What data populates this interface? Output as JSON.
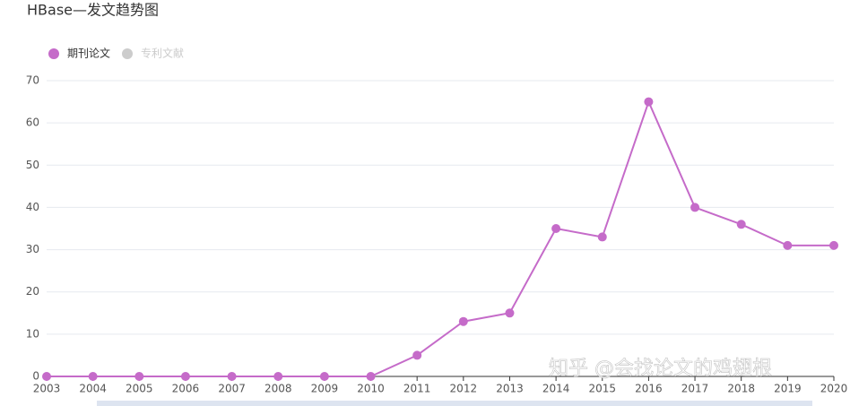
{
  "chart_data": {
    "type": "line",
    "title": "HBase—发文趋势图",
    "categories": [
      "2003",
      "2004",
      "2005",
      "2006",
      "2007",
      "2008",
      "2009",
      "2010",
      "2011",
      "2012",
      "2013",
      "2014",
      "2015",
      "2016",
      "2017",
      "2018",
      "2019",
      "2020"
    ],
    "series": [
      {
        "name": "期刊论文",
        "color": "#c56bc9",
        "values": [
          0,
          0,
          0,
          0,
          0,
          0,
          0,
          0,
          5,
          13,
          15,
          35,
          33,
          65,
          40,
          36,
          31,
          31
        ]
      }
    ],
    "hidden_series": [
      {
        "name": "专利文献",
        "color": "#cccccc"
      }
    ],
    "ylim": [
      0,
      70
    ],
    "yticks": [
      0,
      10,
      20,
      30,
      40,
      50,
      60,
      70
    ],
    "grid": true,
    "watermark": "知乎 @会找论文的鸡翅根"
  }
}
